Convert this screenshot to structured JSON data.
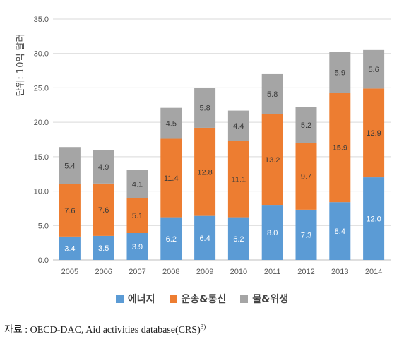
{
  "chart_data": {
    "type": "bar",
    "stacked": true,
    "ylabel": "단위: 10억 달러",
    "ylim": [
      0,
      35
    ],
    "yticks": [
      "0.0",
      "5.0",
      "10.0",
      "15.0",
      "20.0",
      "25.0",
      "30.0",
      "35.0"
    ],
    "categories": [
      "2005",
      "2006",
      "2007",
      "2008",
      "2009",
      "2010",
      "2011",
      "2012",
      "2013",
      "2014"
    ],
    "series": [
      {
        "name": "에너지",
        "color": "#5b9bd5",
        "values": [
          3.4,
          3.5,
          3.9,
          6.2,
          6.4,
          6.2,
          8.0,
          7.3,
          8.4,
          12.0
        ],
        "labels": [
          "3.4",
          "3.5",
          "3.9",
          "6.2",
          "6.4",
          "6.2",
          "8.0",
          "7.3",
          "8.4",
          "12.0"
        ]
      },
      {
        "name": "운송&통신",
        "color": "#ed7d31",
        "values": [
          7.6,
          7.6,
          5.1,
          11.4,
          12.8,
          11.1,
          13.2,
          9.7,
          15.9,
          12.9
        ],
        "labels": [
          "7.6",
          "7.6",
          "5.1",
          "11.4",
          "12.8",
          "11.1",
          "13.2",
          "9.7",
          "15.9",
          "12.9"
        ]
      },
      {
        "name": "물&위생",
        "color": "#a5a5a5",
        "values": [
          5.4,
          4.9,
          4.1,
          4.5,
          5.8,
          4.4,
          5.8,
          5.2,
          5.9,
          5.6
        ],
        "labels": [
          "5.4",
          "4.9",
          "4.1",
          "4.5",
          "5.8",
          "4.4",
          "5.8",
          "5.2",
          "5.9",
          "5.6"
        ]
      }
    ],
    "grid": true,
    "legend_position": "bottom"
  },
  "legend": {
    "items": [
      {
        "label": "에너지",
        "color": "#5b9bd5"
      },
      {
        "label": "운송&통신",
        "color": "#ed7d31"
      },
      {
        "label": "물&위생",
        "color": "#a5a5a5"
      }
    ]
  },
  "source": {
    "text": "자료 : OECD-DAC, Aid activities database(CRS)",
    "footnote": "3)"
  }
}
